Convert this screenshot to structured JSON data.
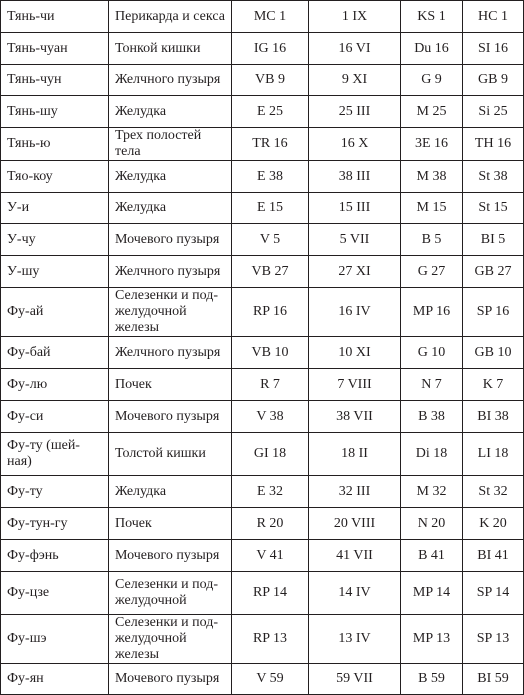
{
  "table": {
    "rows": [
      {
        "name": "Тянь-чи",
        "meridian": "Перикарда и секса",
        "code1": "MC 1",
        "code2": "1 IX",
        "code3": "KS 1",
        "code4": "HC 1"
      },
      {
        "name": "Тянь-чуан",
        "meridian": "Тонкой кишки",
        "code1": "IG 16",
        "code2": "16 VI",
        "code3": "Du 16",
        "code4": "SI 16"
      },
      {
        "name": "Тянь-чун",
        "meridian": "Желчного пузыря",
        "code1": "VB 9",
        "code2": "9 XI",
        "code3": "G 9",
        "code4": "GB 9"
      },
      {
        "name": "Тянь-шу",
        "meridian": "Желудка",
        "code1": "E 25",
        "code2": "25 III",
        "code3": "M 25",
        "code4": "Si 25"
      },
      {
        "name": "Тянь-ю",
        "meridian": "Трех полостей тела",
        "code1": "TR 16",
        "code2": "16 X",
        "code3": "3E 16",
        "code4": "TH 16"
      },
      {
        "name": "Тяо-коу",
        "meridian": "Желудка",
        "code1": "E 38",
        "code2": "38 III",
        "code3": "M 38",
        "code4": "St 38"
      },
      {
        "name": "У-и",
        "meridian": "Желудка",
        "code1": "E 15",
        "code2": "15 III",
        "code3": "M 15",
        "code4": "St 15"
      },
      {
        "name": "У-чу",
        "meridian": "Мочевого пузыря",
        "code1": "V 5",
        "code2": "5 VII",
        "code3": "B 5",
        "code4": "BI 5"
      },
      {
        "name": "У-шу",
        "meridian": "Желчного пузыря",
        "code1": "VB 27",
        "code2": "27 XI",
        "code3": "G 27",
        "code4": "GB 27"
      },
      {
        "name": "Фу-ай",
        "meridian": "Селезенки и под-\nжелудочной железы",
        "code1": "RP 16",
        "code2": "16 IV",
        "code3": "MP 16",
        "code4": "SP 16"
      },
      {
        "name": "Фу-бай",
        "meridian": "Желчного пузыря",
        "code1": "VB 10",
        "code2": "10 XI",
        "code3": "G 10",
        "code4": "GB 10"
      },
      {
        "name": "Фу-лю",
        "meridian": "Почек",
        "code1": "R 7",
        "code2": "7 VIII",
        "code3": "N 7",
        "code4": "K 7"
      },
      {
        "name": "Фу-си",
        "meridian": "Мочевого пузыря",
        "code1": "V 38",
        "code2": "38 VII",
        "code3": "B 38",
        "code4": "BI 38"
      },
      {
        "name": "Фу-ту (шей-\nная)",
        "meridian": "Толстой кишки",
        "code1": "GI 18",
        "code2": "18 II",
        "code3": "Di 18",
        "code4": "LI 18"
      },
      {
        "name": "Фу-ту",
        "meridian": "Желудка",
        "code1": "E 32",
        "code2": "32 III",
        "code3": "M 32",
        "code4": "St 32"
      },
      {
        "name": "Фу-тун-гу",
        "meridian": "Почек",
        "code1": "R 20",
        "code2": "20 VIII",
        "code3": "N 20",
        "code4": "K 20"
      },
      {
        "name": "Фу-фэнь",
        "meridian": "Мочевого пузыря",
        "code1": "V 41",
        "code2": "41 VII",
        "code3": "B 41",
        "code4": "BI 41"
      },
      {
        "name": "Фу-цзе",
        "meridian": "Селезенки и под-\nжелудочной",
        "code1": "RP 14",
        "code2": "14 IV",
        "code3": "MP 14",
        "code4": "SP 14"
      },
      {
        "name": "Фу-шэ",
        "meridian": "Селезенки и под-\nжелудочной железы",
        "code1": "RP 13",
        "code2": "13 IV",
        "code3": "MP 13",
        "code4": "SP 13"
      },
      {
        "name": "Фу-ян",
        "meridian": "Мочевого пузыря",
        "code1": "V 59",
        "code2": "59 VII",
        "code3": "B 59",
        "code4": "BI 59"
      }
    ]
  }
}
